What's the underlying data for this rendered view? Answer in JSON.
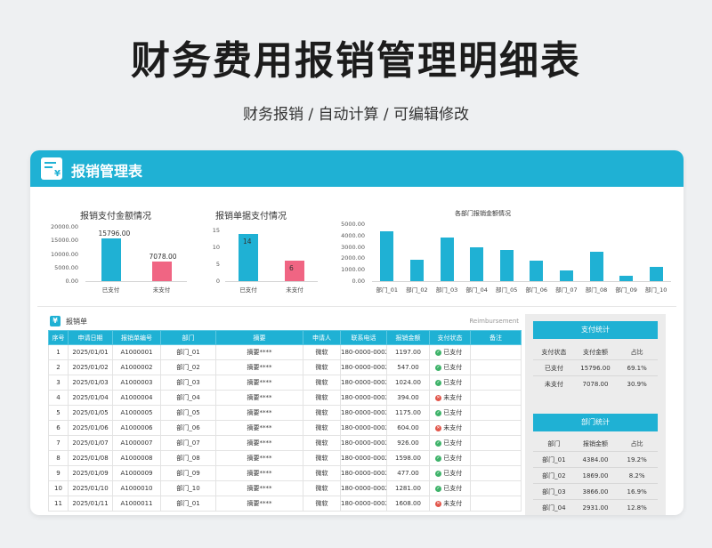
{
  "hero": {
    "title": "财务费用报销管理明细表",
    "subtitle": "财务报销 / 自动计算 / 可编辑修改"
  },
  "card": {
    "title": "报销管理表",
    "header_icon": "document-yen-icon"
  },
  "colors": {
    "accent": "#1fb1d4",
    "paid": "#1fb1d4",
    "unpaid": "#f06583",
    "ok": "#3fb36a",
    "no": "#e2574c"
  },
  "chart_data": [
    {
      "type": "bar",
      "title": "报销支付金额情况",
      "categories": [
        "已支付",
        "未支付"
      ],
      "values": [
        15796.0,
        7078.0
      ],
      "data_labels": [
        "15796.00",
        "7078.00"
      ],
      "yticks": [
        "20000.00",
        "15000.00",
        "10000.00",
        "5000.00",
        "0.00"
      ],
      "ylim": [
        0,
        20000
      ],
      "colors": [
        "#1fb1d4",
        "#f06583"
      ]
    },
    {
      "type": "bar",
      "title": "报销单据支付情况",
      "categories": [
        "已支付",
        "未支付"
      ],
      "values": [
        14,
        6
      ],
      "data_labels": [
        "14",
        "6"
      ],
      "yticks": [
        "15",
        "10",
        "5",
        "0"
      ],
      "ylim": [
        0,
        15
      ],
      "colors": [
        "#1fb1d4",
        "#f06583"
      ]
    },
    {
      "type": "bar",
      "title": "各部门报销金额情况",
      "categories": [
        "部门_01",
        "部门_02",
        "部门_03",
        "部门_04",
        "部门_05",
        "部门_06",
        "部门_07",
        "部门_08",
        "部门_09",
        "部门_10"
      ],
      "values": [
        4384.0,
        1869.0,
        3866.0,
        2931.0,
        2750.0,
        1780.0,
        926.0,
        2550.0,
        477.0,
        1281.0
      ],
      "yticks": [
        "5000.00",
        "4000.00",
        "3000.00",
        "2000.00",
        "1000.00",
        "0.00"
      ],
      "ylim": [
        0,
        5000
      ],
      "colors": [
        "#1fb1d4"
      ]
    }
  ],
  "table": {
    "section_label": "报销单",
    "section_en": "Reimbursement",
    "section_icon": "yen-receipt-icon",
    "headers": [
      "序号",
      "申请日期",
      "报销单编号",
      "部门",
      "摘要",
      "申请人",
      "联系电话",
      "报销金额",
      "支付状态",
      "备注"
    ],
    "rows": [
      {
        "no": "1",
        "date": "2025/01/01",
        "code": "A1000001",
        "dept": "部门_01",
        "summary": "摘要****",
        "applicant": "微软",
        "phone": "180-0000-0002",
        "amount": "1197.00",
        "status": "已支付",
        "ok": true,
        "note": ""
      },
      {
        "no": "2",
        "date": "2025/01/02",
        "code": "A1000002",
        "dept": "部门_02",
        "summary": "摘要****",
        "applicant": "微软",
        "phone": "180-0000-0002",
        "amount": "547.00",
        "status": "已支付",
        "ok": true,
        "note": ""
      },
      {
        "no": "3",
        "date": "2025/01/03",
        "code": "A1000003",
        "dept": "部门_03",
        "summary": "摘要****",
        "applicant": "微软",
        "phone": "180-0000-0002",
        "amount": "1024.00",
        "status": "已支付",
        "ok": true,
        "note": ""
      },
      {
        "no": "4",
        "date": "2025/01/04",
        "code": "A1000004",
        "dept": "部门_04",
        "summary": "摘要****",
        "applicant": "微软",
        "phone": "180-0000-0002",
        "amount": "394.00",
        "status": "未支付",
        "ok": false,
        "note": ""
      },
      {
        "no": "5",
        "date": "2025/01/05",
        "code": "A1000005",
        "dept": "部门_05",
        "summary": "摘要****",
        "applicant": "微软",
        "phone": "180-0000-0002",
        "amount": "1175.00",
        "status": "已支付",
        "ok": true,
        "note": ""
      },
      {
        "no": "6",
        "date": "2025/01/06",
        "code": "A1000006",
        "dept": "部门_06",
        "summary": "摘要****",
        "applicant": "微软",
        "phone": "180-0000-0002",
        "amount": "604.00",
        "status": "未支付",
        "ok": false,
        "note": ""
      },
      {
        "no": "7",
        "date": "2025/01/07",
        "code": "A1000007",
        "dept": "部门_07",
        "summary": "摘要****",
        "applicant": "微软",
        "phone": "180-0000-0002",
        "amount": "926.00",
        "status": "已支付",
        "ok": true,
        "note": ""
      },
      {
        "no": "8",
        "date": "2025/01/08",
        "code": "A1000008",
        "dept": "部门_08",
        "summary": "摘要****",
        "applicant": "微软",
        "phone": "180-0000-0002",
        "amount": "1598.00",
        "status": "已支付",
        "ok": true,
        "note": ""
      },
      {
        "no": "9",
        "date": "2025/01/09",
        "code": "A1000009",
        "dept": "部门_09",
        "summary": "摘要****",
        "applicant": "微软",
        "phone": "180-0000-0002",
        "amount": "477.00",
        "status": "已支付",
        "ok": true,
        "note": ""
      },
      {
        "no": "10",
        "date": "2025/01/10",
        "code": "A1000010",
        "dept": "部门_10",
        "summary": "摘要****",
        "applicant": "微软",
        "phone": "180-0000-0002",
        "amount": "1281.00",
        "status": "已支付",
        "ok": true,
        "note": ""
      },
      {
        "no": "11",
        "date": "2025/01/11",
        "code": "A1000011",
        "dept": "部门_01",
        "summary": "摘要****",
        "applicant": "微软",
        "phone": "180-0000-0002",
        "amount": "1608.00",
        "status": "未支付",
        "ok": false,
        "note": ""
      }
    ]
  },
  "pay_stats": {
    "title": "支付统计",
    "headers": [
      "支付状态",
      "支付金额",
      "占比"
    ],
    "rows": [
      {
        "label": "已支付",
        "amount": "15796.00",
        "ratio": "69.1%"
      },
      {
        "label": "未支付",
        "amount": "7078.00",
        "ratio": "30.9%"
      }
    ]
  },
  "dept_stats": {
    "title": "部门统计",
    "headers": [
      "部门",
      "报销金额",
      "占比"
    ],
    "rows": [
      {
        "label": "部门_01",
        "amount": "4384.00",
        "ratio": "19.2%"
      },
      {
        "label": "部门_02",
        "amount": "1869.00",
        "ratio": "8.2%"
      },
      {
        "label": "部门_03",
        "amount": "3866.00",
        "ratio": "16.9%"
      },
      {
        "label": "部门_04",
        "amount": "2931.00",
        "ratio": "12.8%"
      }
    ]
  }
}
